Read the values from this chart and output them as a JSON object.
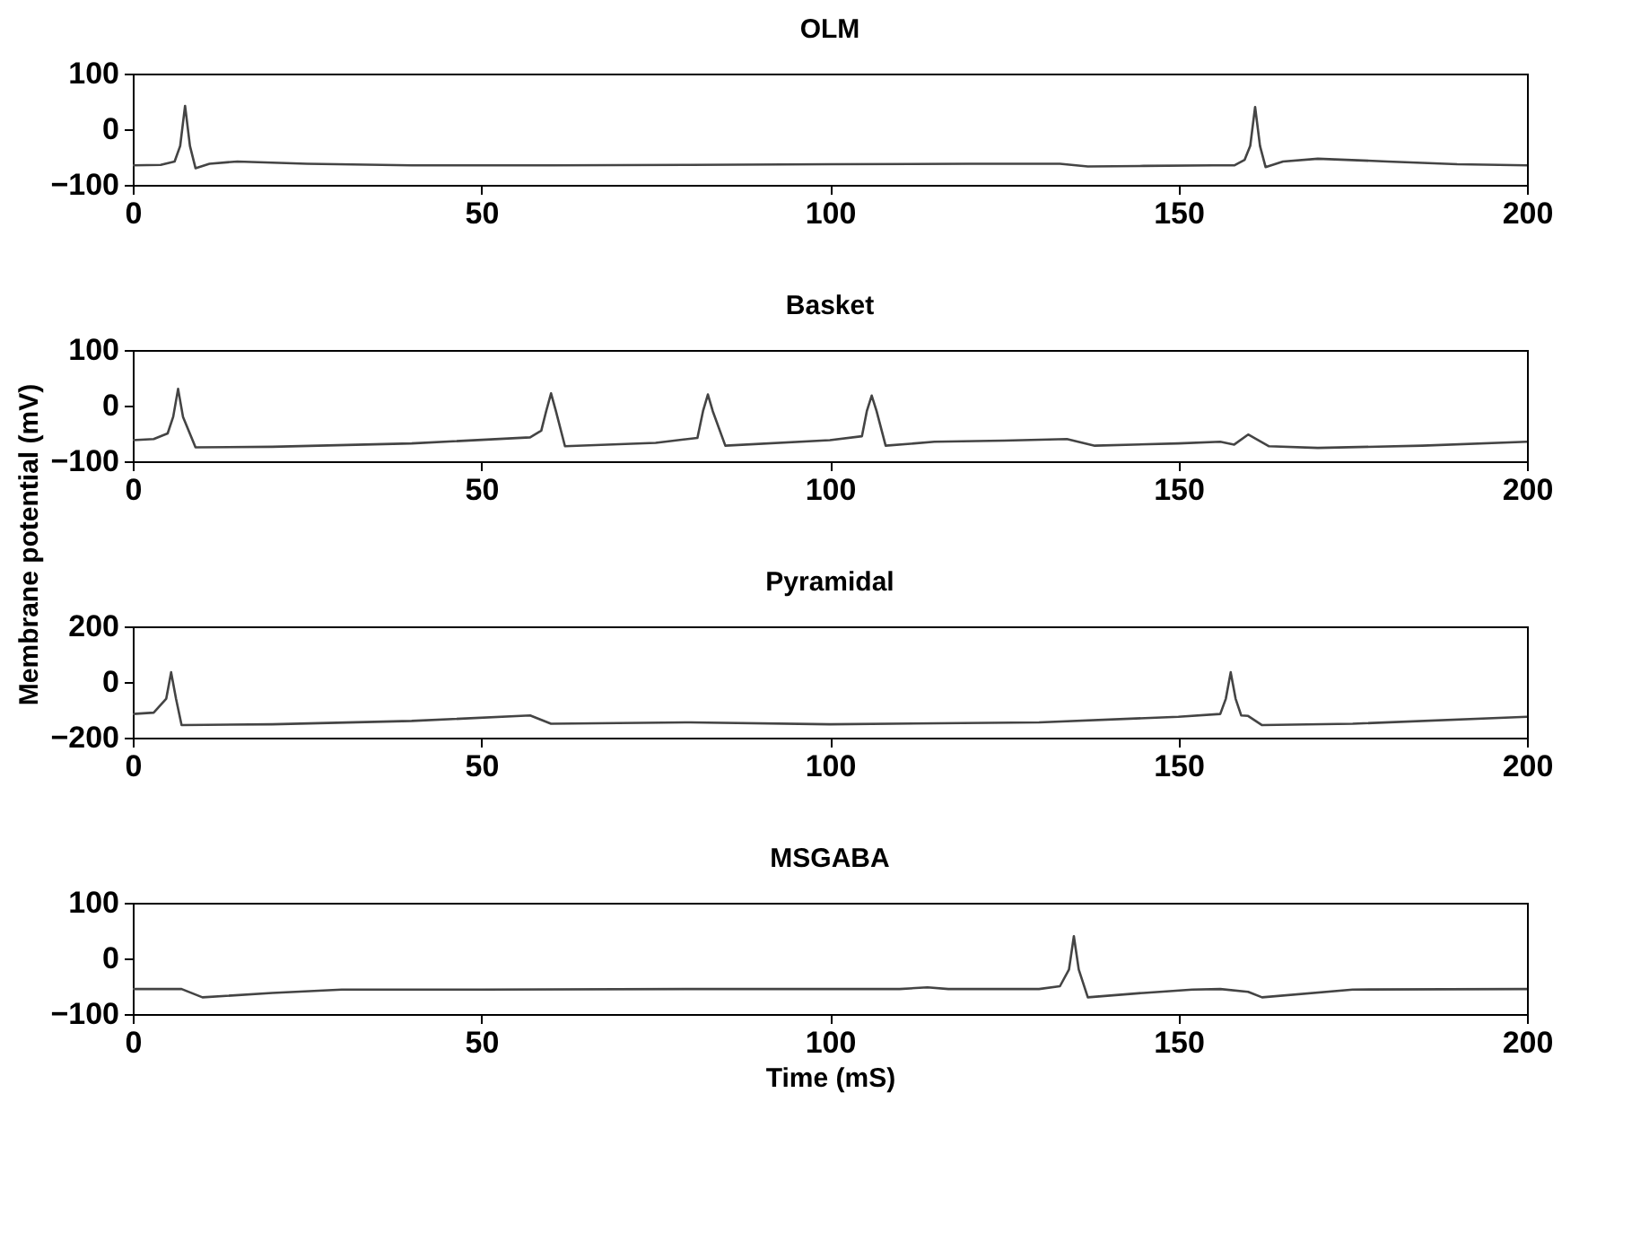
{
  "chart_data": [
    {
      "type": "line",
      "title": "OLM",
      "x": [
        0,
        4,
        6,
        6.8,
        7.5,
        8.2,
        9,
        11,
        15,
        25,
        40,
        60,
        80,
        100,
        120,
        130,
        133,
        137,
        145,
        155,
        158,
        159.5,
        160.3,
        161,
        161.7,
        162.5,
        165,
        170,
        180,
        190,
        200
      ],
      "series": [
        {
          "color": "#444444",
          "values": [
            -65,
            -64,
            -58,
            -30,
            42,
            -30,
            -70,
            -62,
            -58,
            -62,
            -65,
            -65,
            -64,
            -63,
            -62,
            -62,
            -62,
            -67,
            -66,
            -65,
            -65,
            -55,
            -30,
            40,
            -30,
            -68,
            -58,
            -53,
            -58,
            -63,
            -65
          ]
        }
      ],
      "xlim": [
        0,
        200
      ],
      "xticks": [
        0,
        50,
        100,
        150,
        200
      ],
      "ylim": [
        -100,
        100
      ],
      "yticks": [
        -100,
        0,
        100
      ],
      "grid": false
    },
    {
      "type": "line",
      "title": "Basket",
      "ylabel": "Membrane potential (mV)",
      "x": [
        0,
        3,
        5,
        5.8,
        6.5,
        7.2,
        9,
        20,
        40,
        57,
        58.6,
        59.3,
        60,
        60.7,
        62,
        75,
        81,
        81.8,
        82.5,
        83.2,
        85,
        100,
        104.6,
        105.3,
        106,
        106.7,
        108,
        115,
        125,
        134,
        138,
        150,
        156,
        158,
        160,
        163,
        170,
        185,
        200
      ],
      "series": [
        {
          "color": "#444444",
          "values": [
            -62,
            -60,
            -50,
            -20,
            30,
            -20,
            -75,
            -74,
            -68,
            -57,
            -45,
            -10,
            22,
            -10,
            -73,
            -67,
            -58,
            -10,
            20,
            -10,
            -72,
            -62,
            -55,
            -10,
            18,
            -10,
            -72,
            -65,
            -63,
            -60,
            -72,
            -68,
            -65,
            -70,
            -52,
            -73,
            -76,
            -72,
            -65
          ]
        }
      ],
      "xlim": [
        0,
        200
      ],
      "xticks": [
        0,
        50,
        100,
        150,
        200
      ],
      "ylim": [
        -100,
        100
      ],
      "yticks": [
        -100,
        0,
        100
      ],
      "grid": false
    },
    {
      "type": "line",
      "title": "Pyramidal",
      "x": [
        0,
        3,
        4.8,
        5.5,
        6.2,
        7,
        20,
        40,
        57,
        60,
        80,
        100,
        130,
        150,
        156,
        156.8,
        157.5,
        158.2,
        159,
        160,
        162,
        175,
        200
      ],
      "series": [
        {
          "color": "#444444",
          "values": [
            -115,
            -110,
            -60,
            35,
            -60,
            -155,
            -152,
            -140,
            -120,
            -150,
            -145,
            -152,
            -145,
            -125,
            -115,
            -60,
            35,
            -60,
            -120,
            -122,
            -155,
            -150,
            -125
          ]
        }
      ],
      "xlim": [
        0,
        200
      ],
      "xticks": [
        0,
        50,
        100,
        150,
        200
      ],
      "ylim": [
        -200,
        200
      ],
      "yticks": [
        -200,
        0,
        200
      ],
      "grid": false
    },
    {
      "type": "line",
      "title": "MSGABA",
      "xlabel": "Time (mS)",
      "x": [
        0,
        7,
        10,
        20,
        30,
        50,
        80,
        110,
        114,
        117,
        130,
        133,
        134.3,
        135,
        135.7,
        137,
        145,
        152,
        156,
        160,
        162,
        175,
        200
      ],
      "series": [
        {
          "color": "#444444",
          "values": [
            -55,
            -55,
            -70,
            -62,
            -56,
            -56,
            -55,
            -55,
            -52,
            -55,
            -55,
            -50,
            -20,
            40,
            -20,
            -70,
            -62,
            -56,
            -55,
            -60,
            -70,
            -56,
            -55
          ]
        }
      ],
      "xlim": [
        0,
        200
      ],
      "xticks": [
        0,
        50,
        100,
        150,
        200
      ],
      "ylim": [
        -100,
        100
      ],
      "yticks": [
        -100,
        0,
        100
      ],
      "grid": false
    }
  ]
}
